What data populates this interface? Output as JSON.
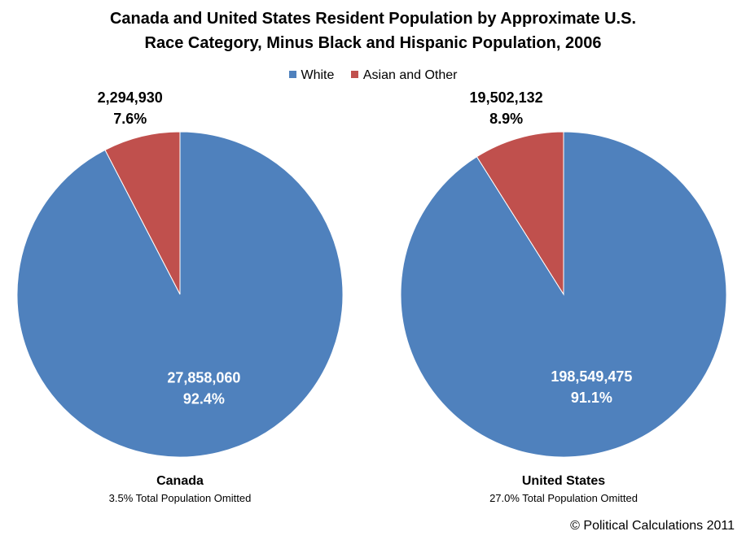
{
  "title_line1": "Canada and United States Resident Population by Approximate U.S.",
  "title_line2": "Race Category, Minus Black and Hispanic Population, 2006",
  "legend": [
    {
      "label": "White",
      "color": "#4f81bd"
    },
    {
      "label": "Asian and Other",
      "color": "#c0504d"
    }
  ],
  "credit": "© Political Calculations 2011",
  "chart_data": [
    {
      "type": "pie",
      "label": "Canada",
      "note": "3.5% Total Population Omitted",
      "slices": [
        {
          "name": "Asian and Other",
          "value": 2294930,
          "value_label": "2,294,930",
          "pct_label": "7.6%",
          "color": "#c0504d"
        },
        {
          "name": "White",
          "value": 27858060,
          "value_label": "27,858,060",
          "pct_label": "92.4%",
          "color": "#4f81bd"
        }
      ]
    },
    {
      "type": "pie",
      "label": "United States",
      "note": "27.0% Total Population Omitted",
      "slices": [
        {
          "name": "Asian and Other",
          "value": 19502132,
          "value_label": "19,502,132",
          "pct_label": "8.9%",
          "color": "#c0504d"
        },
        {
          "name": "White",
          "value": 198549475,
          "value_label": "198,549,475",
          "pct_label": "91.1%",
          "color": "#4f81bd"
        }
      ]
    }
  ]
}
